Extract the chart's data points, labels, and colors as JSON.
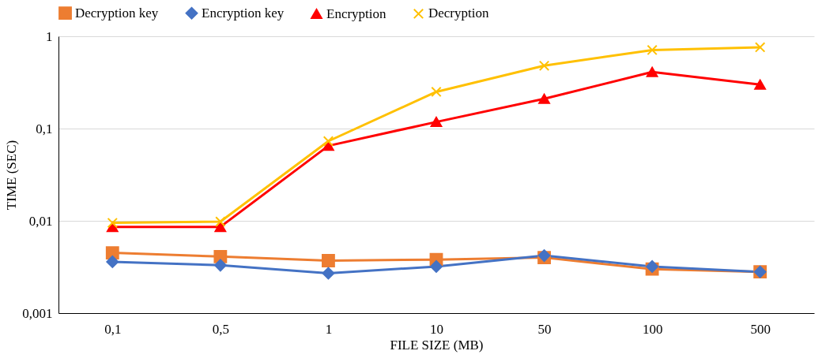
{
  "chart_data": {
    "type": "line",
    "xlabel": "FILE SIZE (MB)",
    "ylabel": "TIME (SEC)",
    "categories": [
      "0,1",
      "0,5",
      "1",
      "10",
      "50",
      "100",
      "500"
    ],
    "series": [
      {
        "name": "Decryption key",
        "color": "#ed7d31",
        "marker": "square",
        "values": [
          0.0045,
          0.0041,
          0.0037,
          0.0038,
          0.004,
          0.003,
          0.0028
        ]
      },
      {
        "name": "Encryption key",
        "color": "#4472c4",
        "marker": "diamond",
        "values": [
          0.0036,
          0.0033,
          0.0027,
          0.0032,
          0.0042,
          0.0032,
          0.0028
        ]
      },
      {
        "name": "Encryption",
        "color": "#ff0000",
        "marker": "triangle",
        "values": [
          0.0086,
          0.0086,
          0.065,
          0.118,
          0.21,
          0.41,
          0.3
        ]
      },
      {
        "name": "Decryption",
        "color": "#ffc000",
        "marker": "cross",
        "values": [
          0.0095,
          0.0098,
          0.073,
          0.25,
          0.48,
          0.71,
          0.76
        ]
      }
    ],
    "log": "y",
    "ylim": [
      0.001,
      1
    ],
    "yticks": [
      {
        "value": 0.001,
        "label": "0,001"
      },
      {
        "value": 0.01,
        "label": "0,01"
      },
      {
        "value": 0.1,
        "label": "0,1"
      },
      {
        "value": 1,
        "label": "1"
      }
    ],
    "grid": "y",
    "legend": "top"
  }
}
